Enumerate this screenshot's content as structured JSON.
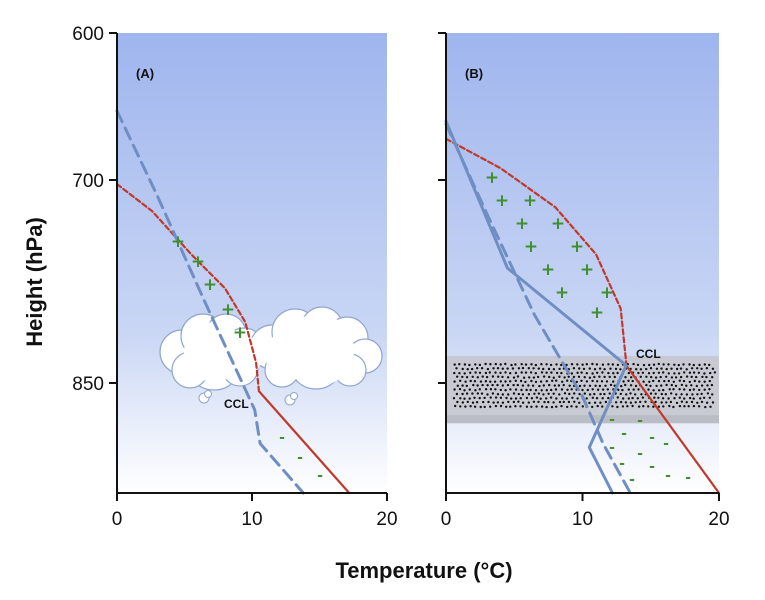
{
  "chart_data": [
    {
      "type": "line",
      "panel_label": "(A)",
      "xlim": [
        0,
        20
      ],
      "y_ticks": [
        600,
        700,
        850
      ],
      "x_ticks": [
        0,
        10,
        20
      ],
      "ylabel": "Height (hPa)",
      "xlabel": "Temperature (°C)",
      "colors": {
        "red": "#c0392b",
        "blue": "#6f8fc4"
      },
      "series": [
        {
          "style": "red-dashed",
          "points": [
            [
              0,
              703
            ],
            [
              2.6,
              723
            ],
            [
              5.5,
              755
            ],
            [
              8,
              780
            ],
            [
              9.5,
              805
            ],
            [
              10.3,
              835
            ],
            [
              10.5,
              855
            ]
          ]
        },
        {
          "style": "red-solid",
          "points": [
            [
              10.5,
              856
            ],
            [
              17.2,
              932
            ]
          ]
        },
        {
          "style": "blue-dashed",
          "points": [
            [
              0,
              653
            ],
            [
              3,
              712
            ],
            [
              6.5,
              790
            ],
            [
              10.2,
              870
            ],
            [
              10.6,
              895
            ],
            [
              13.8,
              932
            ]
          ]
        }
      ],
      "annotations": {
        "ccl": "CCL",
        "plus": "+",
        "minus": "-"
      },
      "cloud": true
    },
    {
      "type": "line",
      "panel_label": "(B)",
      "xlim": [
        0,
        20
      ],
      "x_ticks": [
        0,
        10,
        20
      ],
      "colors": {
        "red": "#c0392b",
        "blue": "#6f8fc4"
      },
      "series": [
        {
          "style": "red-dashed",
          "points": [
            [
              0,
              672
            ],
            [
              4,
              692
            ],
            [
              8,
              720
            ],
            [
              11,
              755
            ],
            [
              12.8,
              795
            ],
            [
              13.2,
              835
            ]
          ]
        },
        {
          "style": "red-solid",
          "points": [
            [
              13.2,
              837
            ],
            [
              20,
              932
            ]
          ]
        },
        {
          "style": "blue-solid",
          "points": [
            [
              0,
              660
            ],
            [
              4.5,
              765
            ],
            [
              13.2,
              837
            ],
            [
              10.5,
              898
            ],
            [
              12.2,
              932
            ]
          ]
        },
        {
          "style": "blue-dashed",
          "points": [
            [
              0,
              662
            ],
            [
              3,
              725
            ],
            [
              6.5,
              800
            ],
            [
              10,
              860
            ],
            [
              11.5,
              895
            ],
            [
              13.5,
              932
            ]
          ]
        }
      ],
      "haze_band": [
        830,
        880
      ],
      "annotations": {
        "ccl": "CCL",
        "plus": "+",
        "minus": "-"
      }
    }
  ]
}
